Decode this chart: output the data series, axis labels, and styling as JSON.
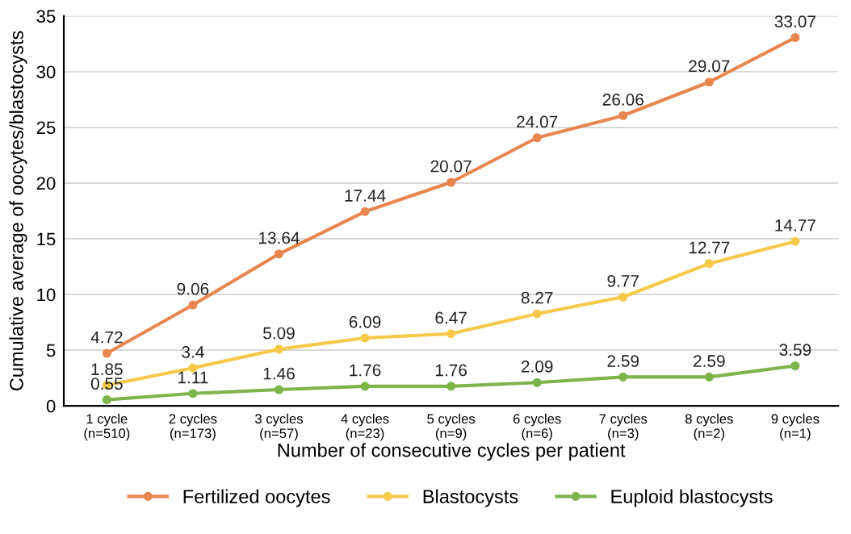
{
  "chart_data": {
    "type": "line",
    "xlabel": "Number of consecutive cycles per patient",
    "ylabel": "Cumulative average of oocytes/blastocysts",
    "categories": [
      "1 cycle\n(n=510)",
      "2 cycles\n(n=173)",
      "3 cycles\n(n=57)",
      "4 cycles\n(n=23)",
      "5 cycles\n(n=9)",
      "6 cycles\n(n=6)",
      "7 cycles\n(n=3)",
      "8 cycles\n(n=2)",
      "9 cycles\n(n=1)"
    ],
    "series": [
      {
        "name": "Fertilized oocytes",
        "color": "#e8864f",
        "values": [
          4.72,
          9.06,
          13.64,
          17.44,
          20.07,
          24.07,
          26.06,
          29.07,
          33.07
        ]
      },
      {
        "name": "Blastocysts",
        "color": "#f6c94a",
        "values": [
          1.85,
          3.4,
          5.09,
          6.09,
          6.47,
          8.27,
          9.77,
          12.77,
          14.77
        ]
      },
      {
        "name": "Euploid blastocysts",
        "color": "#7db54a",
        "values": [
          0.55,
          1.11,
          1.46,
          1.76,
          1.76,
          2.09,
          2.59,
          2.59,
          3.59
        ]
      }
    ],
    "ylim": [
      0,
      35
    ],
    "yticks": [
      0,
      5,
      10,
      15,
      20,
      25,
      30,
      35
    ],
    "grid": "y",
    "legend": "bottom",
    "marker": "circle",
    "line_style": "solid",
    "data_labels": true
  }
}
